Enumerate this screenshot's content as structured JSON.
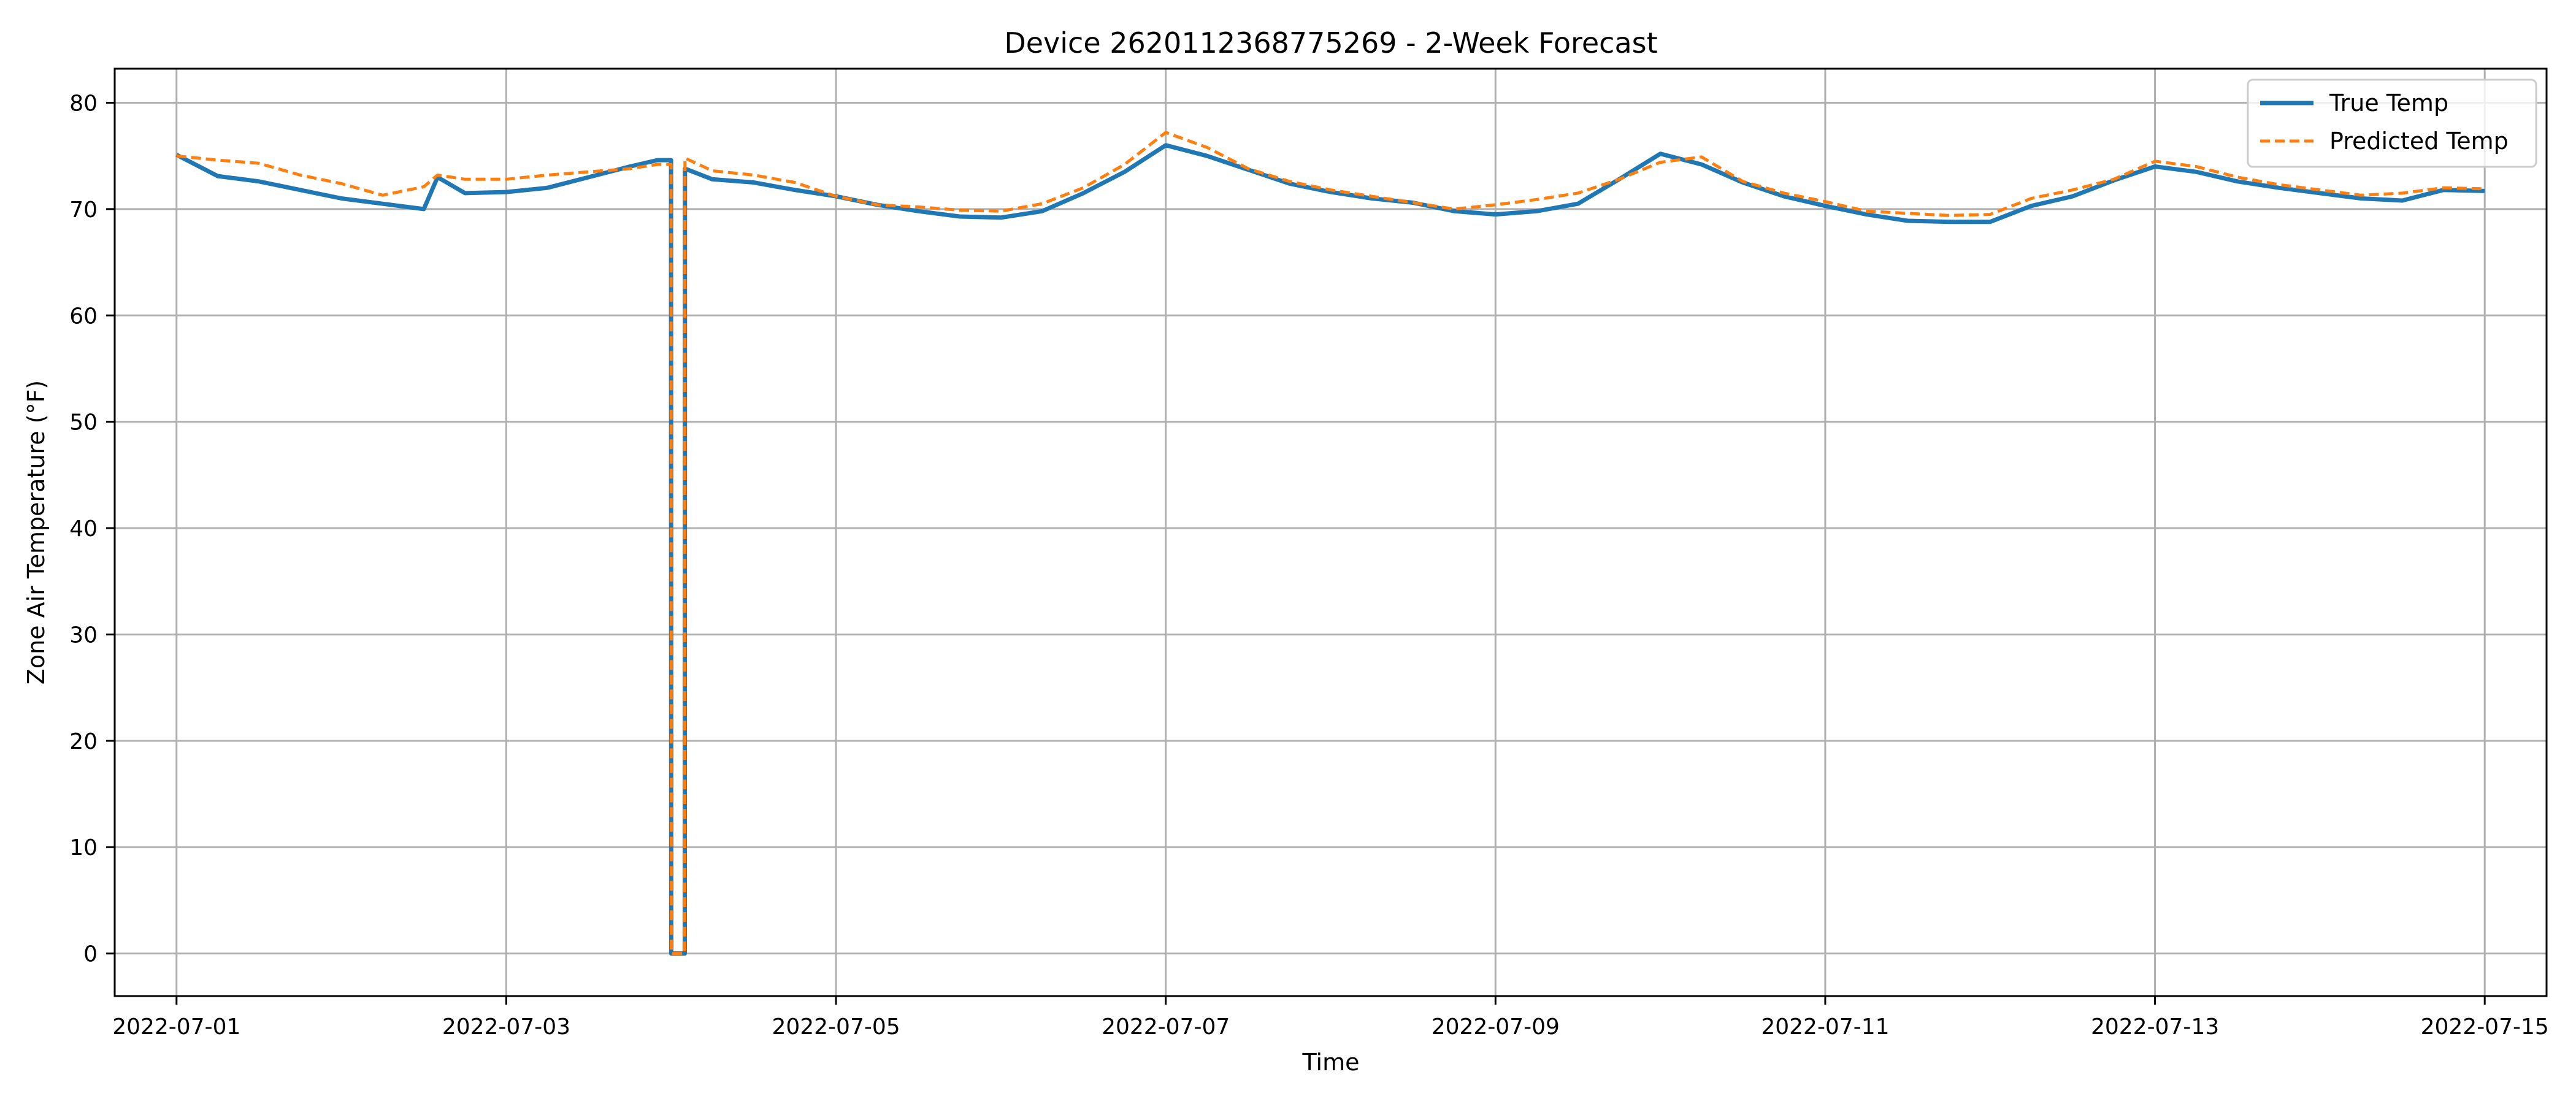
{
  "chart_data": {
    "type": "line",
    "title": "Device 2620112368775269 - 2-Week Forecast",
    "xlabel": "Time",
    "ylabel": "Zone Air Temperature (°F)",
    "xlim": [
      "2022-06-30T15:00",
      "2022-07-15T09:00"
    ],
    "ylim": [
      -4,
      83.2
    ],
    "x_ticks": [
      "2022-07-01",
      "2022-07-03",
      "2022-07-05",
      "2022-07-07",
      "2022-07-09",
      "2022-07-11",
      "2022-07-13",
      "2022-07-15"
    ],
    "y_ticks": [
      0,
      10,
      20,
      30,
      40,
      50,
      60,
      70,
      80
    ],
    "grid": true,
    "legend_position": "top-right",
    "colors": {
      "true_temp": "#1f77b4",
      "predicted_temp": "#ff7f0e"
    },
    "series": [
      {
        "name": "True Temp",
        "style": "solid",
        "x": [
          "2022-07-01T00:00",
          "2022-07-01T06:00",
          "2022-07-01T12:00",
          "2022-07-01T18:00",
          "2022-07-02T00:00",
          "2022-07-02T06:00",
          "2022-07-02T12:00",
          "2022-07-02T14:00",
          "2022-07-02T18:00",
          "2022-07-03T00:00",
          "2022-07-03T06:00",
          "2022-07-03T12:00",
          "2022-07-03T18:00",
          "2022-07-03T22:00",
          "2022-07-03T23:59",
          "2022-07-04T00:01",
          "2022-07-04T01:59",
          "2022-07-04T02:01",
          "2022-07-04T06:00",
          "2022-07-04T12:00",
          "2022-07-04T18:00",
          "2022-07-05T00:00",
          "2022-07-05T06:00",
          "2022-07-05T12:00",
          "2022-07-05T18:00",
          "2022-07-06T00:00",
          "2022-07-06T06:00",
          "2022-07-06T12:00",
          "2022-07-06T18:00",
          "2022-07-07T00:00",
          "2022-07-07T06:00",
          "2022-07-07T12:00",
          "2022-07-07T18:00",
          "2022-07-08T00:00",
          "2022-07-08T06:00",
          "2022-07-08T12:00",
          "2022-07-08T18:00",
          "2022-07-09T00:00",
          "2022-07-09T06:00",
          "2022-07-09T12:00",
          "2022-07-09T18:00",
          "2022-07-10T00:00",
          "2022-07-10T06:00",
          "2022-07-10T12:00",
          "2022-07-10T18:00",
          "2022-07-11T00:00",
          "2022-07-11T06:00",
          "2022-07-11T12:00",
          "2022-07-11T18:00",
          "2022-07-12T00:00",
          "2022-07-12T06:00",
          "2022-07-12T12:00",
          "2022-07-12T18:00",
          "2022-07-13T00:00",
          "2022-07-13T06:00",
          "2022-07-13T12:00",
          "2022-07-13T18:00",
          "2022-07-14T00:00",
          "2022-07-14T06:00",
          "2022-07-14T12:00",
          "2022-07-14T18:00",
          "2022-07-15T00:00"
        ],
        "y": [
          75.1,
          73.1,
          72.6,
          71.8,
          71.0,
          70.5,
          70.0,
          73.0,
          71.5,
          71.6,
          72.0,
          73.0,
          74.0,
          74.6,
          74.6,
          0.0,
          0.0,
          73.8,
          72.8,
          72.5,
          71.8,
          71.2,
          70.4,
          69.8,
          69.3,
          69.2,
          69.8,
          71.5,
          73.5,
          76.0,
          75.0,
          73.7,
          72.4,
          71.6,
          71.0,
          70.6,
          69.8,
          69.5,
          69.8,
          70.5,
          72.8,
          75.2,
          74.2,
          72.5,
          71.2,
          70.3,
          69.5,
          68.9,
          68.8,
          68.8,
          70.3,
          71.2,
          72.7,
          74.0,
          73.5,
          72.6,
          72.0,
          71.5,
          71.0,
          70.8,
          71.8,
          71.7
        ]
      },
      {
        "name": "Predicted Temp",
        "style": "dashed",
        "x": [
          "2022-07-01T00:00",
          "2022-07-01T06:00",
          "2022-07-01T12:00",
          "2022-07-01T18:00",
          "2022-07-02T00:00",
          "2022-07-02T06:00",
          "2022-07-02T12:00",
          "2022-07-02T14:00",
          "2022-07-02T18:00",
          "2022-07-03T00:00",
          "2022-07-03T06:00",
          "2022-07-03T12:00",
          "2022-07-03T18:00",
          "2022-07-03T22:00",
          "2022-07-03T23:59",
          "2022-07-04T00:01",
          "2022-07-04T01:59",
          "2022-07-04T02:01",
          "2022-07-04T06:00",
          "2022-07-04T12:00",
          "2022-07-04T18:00",
          "2022-07-05T00:00",
          "2022-07-05T06:00",
          "2022-07-05T12:00",
          "2022-07-05T18:00",
          "2022-07-06T00:00",
          "2022-07-06T06:00",
          "2022-07-06T12:00",
          "2022-07-06T18:00",
          "2022-07-07T00:00",
          "2022-07-07T06:00",
          "2022-07-07T12:00",
          "2022-07-07T18:00",
          "2022-07-08T00:00",
          "2022-07-08T06:00",
          "2022-07-08T12:00",
          "2022-07-08T18:00",
          "2022-07-09T00:00",
          "2022-07-09T06:00",
          "2022-07-09T12:00",
          "2022-07-09T18:00",
          "2022-07-10T00:00",
          "2022-07-10T06:00",
          "2022-07-10T12:00",
          "2022-07-10T18:00",
          "2022-07-11T00:00",
          "2022-07-11T06:00",
          "2022-07-11T12:00",
          "2022-07-11T18:00",
          "2022-07-12T00:00",
          "2022-07-12T06:00",
          "2022-07-12T12:00",
          "2022-07-12T18:00",
          "2022-07-13T00:00",
          "2022-07-13T06:00",
          "2022-07-13T12:00",
          "2022-07-13T18:00",
          "2022-07-14T00:00",
          "2022-07-14T06:00",
          "2022-07-14T12:00",
          "2022-07-14T18:00",
          "2022-07-15T00:00"
        ],
        "y": [
          75.0,
          74.6,
          74.3,
          73.2,
          72.4,
          71.3,
          72.1,
          73.2,
          72.8,
          72.8,
          73.2,
          73.5,
          73.8,
          74.2,
          74.2,
          0.0,
          0.0,
          74.8,
          73.6,
          73.2,
          72.5,
          71.2,
          70.4,
          70.2,
          69.9,
          69.8,
          70.5,
          72.0,
          74.2,
          77.2,
          75.8,
          73.8,
          72.6,
          71.8,
          71.2,
          70.6,
          70.0,
          70.4,
          70.9,
          71.5,
          72.8,
          74.4,
          74.9,
          72.6,
          71.5,
          70.7,
          69.8,
          69.6,
          69.4,
          69.5,
          71.0,
          71.8,
          72.8,
          74.5,
          74.0,
          73.0,
          72.3,
          71.8,
          71.3,
          71.5,
          72.0,
          71.9
        ]
      }
    ]
  }
}
